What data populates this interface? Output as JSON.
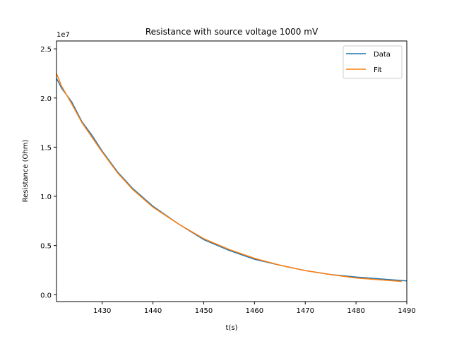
{
  "chart_data": {
    "type": "line",
    "title": "Resistance with source voltage 1000 mV",
    "xlabel": "t(s)",
    "ylabel": "Resistance (Ohm)",
    "y_offset_label": "1e7",
    "xlim": [
      1421,
      1490
    ],
    "ylim": [
      -0.07,
      2.58
    ],
    "y_scale": 10000000,
    "x_ticks": [
      1430,
      1440,
      1450,
      1460,
      1470,
      1480,
      1490
    ],
    "y_ticks": [
      0.0,
      0.5,
      1.0,
      1.5,
      2.0,
      2.5
    ],
    "x_tick_labels": [
      "1430",
      "1440",
      "1450",
      "1460",
      "1470",
      "1480",
      "1490"
    ],
    "y_tick_labels": [
      "0.0",
      "0.5",
      "1.0",
      "1.5",
      "2.0",
      "2.5"
    ],
    "grid": false,
    "legend": "top-right",
    "series": [
      {
        "name": "Data",
        "color": "#1f77b4",
        "x": [
          1421,
          1422,
          1424,
          1426,
          1428,
          1430,
          1433,
          1436,
          1440,
          1445,
          1450,
          1455,
          1460,
          1465,
          1470,
          1475,
          1480,
          1485,
          1490
        ],
        "y": [
          2.2,
          2.1,
          1.96,
          1.76,
          1.62,
          1.46,
          1.25,
          1.08,
          0.9,
          0.72,
          0.56,
          0.45,
          0.36,
          0.3,
          0.245,
          0.205,
          0.18,
          0.16,
          0.14
        ]
      },
      {
        "name": "Fit",
        "color": "#ff7f0e",
        "x": [
          1421,
          1422,
          1424,
          1426,
          1428,
          1430,
          1433,
          1436,
          1440,
          1445,
          1450,
          1455,
          1460,
          1465,
          1470,
          1475,
          1480,
          1485,
          1489
        ],
        "y": [
          2.25,
          2.12,
          1.94,
          1.75,
          1.6,
          1.45,
          1.24,
          1.07,
          0.89,
          0.72,
          0.57,
          0.46,
          0.37,
          0.3,
          0.245,
          0.205,
          0.17,
          0.15,
          0.135
        ]
      }
    ]
  }
}
